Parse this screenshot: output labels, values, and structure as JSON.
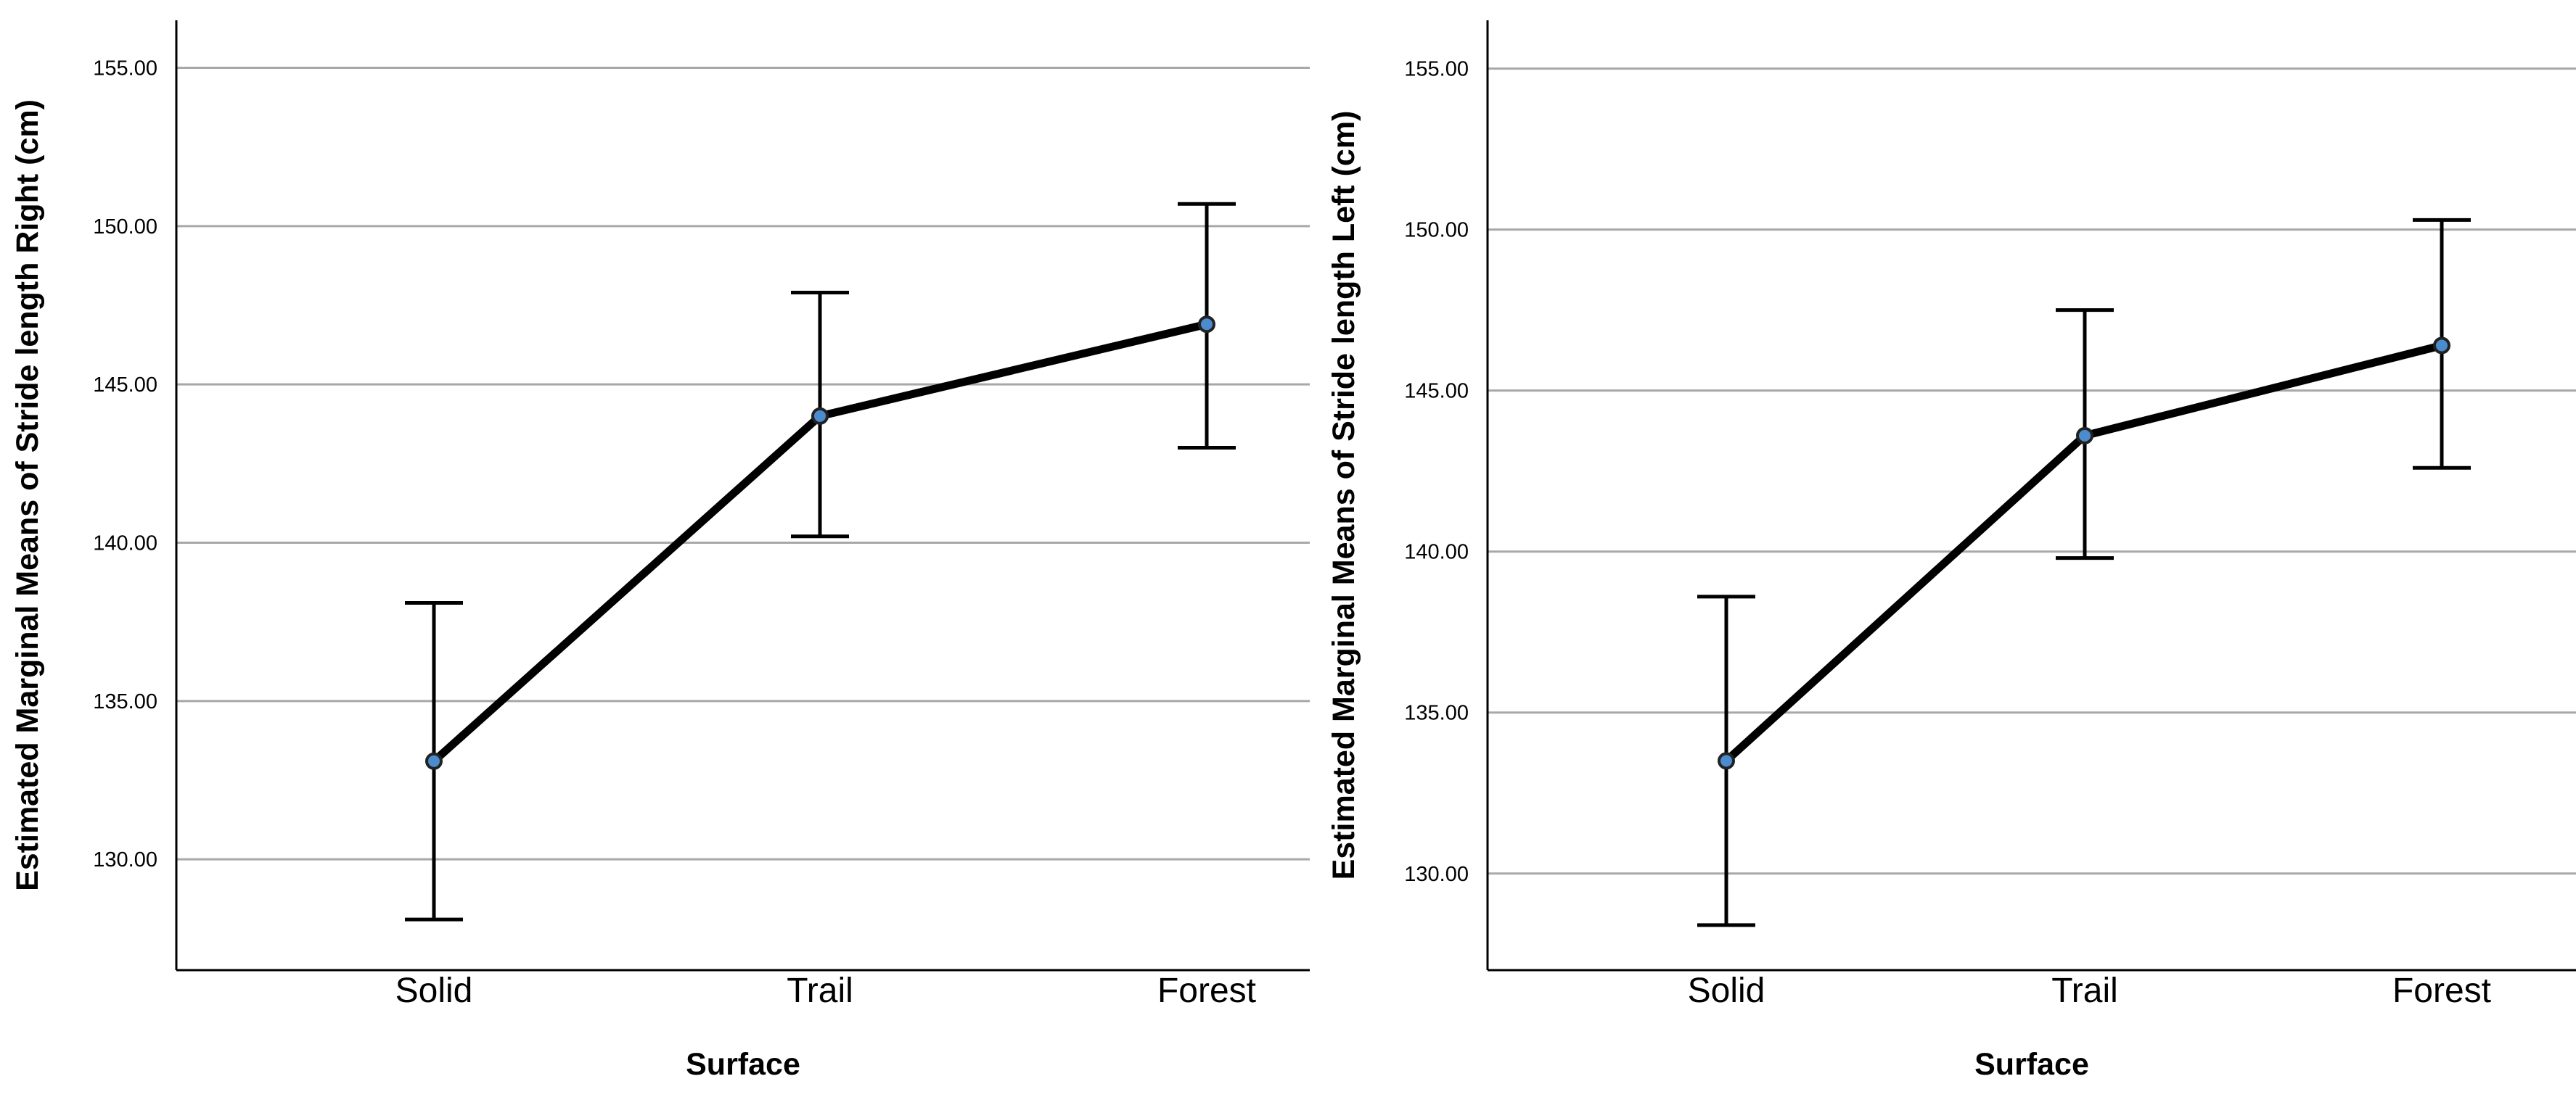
{
  "colors": {
    "point_fill": "#4b8ccf",
    "line": "#000000",
    "grid": "#a8a8a8"
  },
  "chart_data": [
    {
      "type": "line",
      "title": "",
      "xlabel": "Surface",
      "ylabel": "Estimated Marginal Means of Stride length Right (cm)",
      "categories": [
        "Solid",
        "Trail",
        "Forest"
      ],
      "values": [
        133.1,
        144.0,
        146.9
      ],
      "error_low": [
        128.1,
        140.2,
        143.0
      ],
      "error_high": [
        138.1,
        147.9,
        150.7
      ],
      "ylim": [
        126.5,
        156.5
      ],
      "yticks": [
        130,
        135,
        140,
        145,
        150,
        155
      ],
      "ytick_labels": [
        "130.00",
        "135.00",
        "140.00",
        "145.00",
        "150.00",
        "155.00"
      ],
      "grid": true,
      "legend": "none"
    },
    {
      "type": "line",
      "title": "",
      "xlabel": "Surface",
      "ylabel": "Estimated Marginal Means of Stride length Left (cm)",
      "categories": [
        "Solid",
        "Trail",
        "Forest"
      ],
      "values": [
        133.5,
        143.6,
        146.4
      ],
      "error_low": [
        128.4,
        139.8,
        142.6
      ],
      "error_high": [
        138.6,
        147.5,
        150.3
      ],
      "ylim": [
        127.0,
        156.5
      ],
      "yticks": [
        130,
        135,
        140,
        145,
        150,
        155
      ],
      "ytick_labels": [
        "130.00",
        "135.00",
        "140.00",
        "145.00",
        "150.00",
        "155.00"
      ],
      "grid": true,
      "legend": "none"
    }
  ]
}
